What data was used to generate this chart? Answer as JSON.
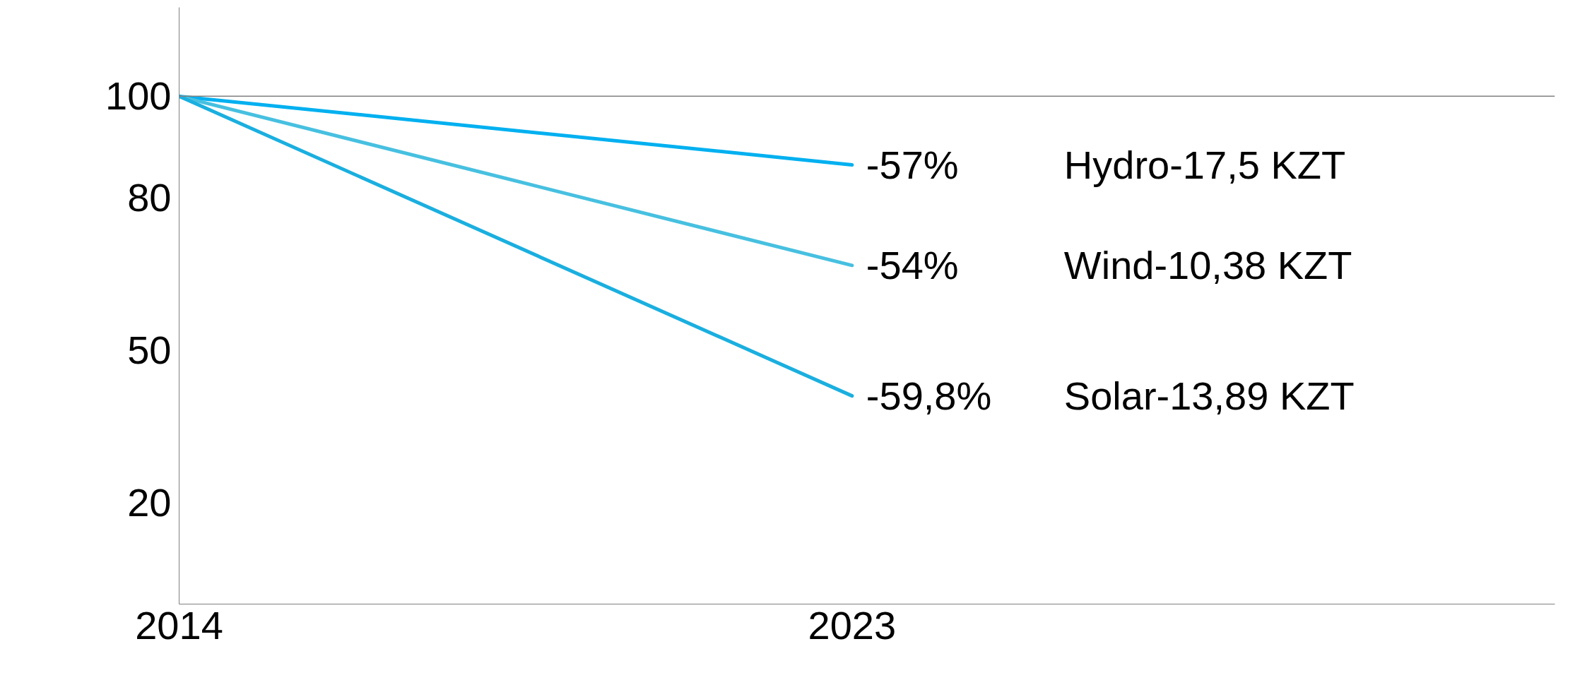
{
  "chart_data": {
    "type": "line",
    "x": [
      2014,
      2023
    ],
    "xlim": [
      2014,
      2032.4
    ],
    "xticks": [
      2014,
      2023
    ],
    "ylim": [
      0,
      117.5
    ],
    "yticks": [
      20,
      50,
      80,
      100
    ],
    "grid": false,
    "marker": "none",
    "line_style": "solid",
    "series": [
      {
        "name": "Hydro-17,5 KZT",
        "color": "#00b0f0",
        "values": [
          100,
          86.5
        ]
      },
      {
        "name": "Wind-10,38 KZT",
        "color": "#47c0e0",
        "values": [
          100,
          66.7
        ]
      },
      {
        "name": "Solar-13,89 KZT",
        "color": "#1aafdf",
        "values": [
          100,
          41
        ]
      }
    ],
    "annotations": [
      "-57%",
      "-54%",
      "-59,8%"
    ],
    "ref_lines": [
      {
        "axis": "y",
        "value": 100,
        "color": "#808080"
      }
    ]
  }
}
